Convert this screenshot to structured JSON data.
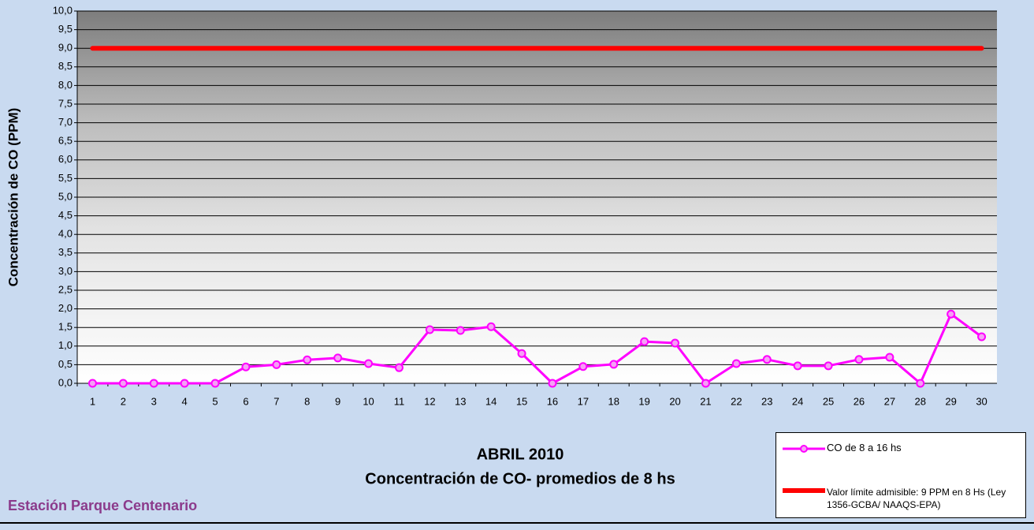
{
  "chart_data": {
    "type": "line",
    "x_label": "ABRIL 2010",
    "subtitle": "Concentración de CO- promedios de 8 hs",
    "y_label": "Concentración de CO (PPM)",
    "station": "Estación Parque Centenario",
    "categories": [
      "1",
      "2",
      "3",
      "4",
      "5",
      "6",
      "7",
      "8",
      "9",
      "10",
      "11",
      "12",
      "13",
      "14",
      "15",
      "16",
      "17",
      "18",
      "19",
      "20",
      "21",
      "22",
      "23",
      "24",
      "25",
      "26",
      "27",
      "28",
      "29",
      "30"
    ],
    "series": [
      {
        "name": "CO de 8 a 16 hs",
        "color": "#ff00ff",
        "markers": true,
        "values": [
          0,
          0,
          0,
          0,
          0,
          0.44,
          0.5,
          0.63,
          0.68,
          0.53,
          0.42,
          1.44,
          1.42,
          1.52,
          0.8,
          0,
          0.45,
          0.51,
          1.12,
          1.08,
          0,
          0.53,
          0.64,
          0.47,
          0.47,
          0.64,
          0.7,
          0,
          1.86,
          1.25
        ]
      },
      {
        "name": "Valor límite admisible: 9 PPM en 8 Hs (Ley 1356-GCBA/ NAAQS-EPA)",
        "color": "#ff0000",
        "markers": false,
        "values": [
          9,
          9,
          9,
          9,
          9,
          9,
          9,
          9,
          9,
          9,
          9,
          9,
          9,
          9,
          9,
          9,
          9,
          9,
          9,
          9,
          9,
          9,
          9,
          9,
          9,
          9,
          9,
          9,
          9,
          9
        ]
      }
    ],
    "ylim": [
      0,
      10
    ],
    "yticks": [
      {
        "value": 0,
        "label": "0,0"
      },
      {
        "value": 0.5,
        "label": "0,5"
      },
      {
        "value": 1,
        "label": "1,0"
      },
      {
        "value": 1.5,
        "label": "1,5"
      },
      {
        "value": 2,
        "label": "2,0"
      },
      {
        "value": 2.5,
        "label": "2,5"
      },
      {
        "value": 3,
        "label": "3,0"
      },
      {
        "value": 3.5,
        "label": "3,5"
      },
      {
        "value": 4,
        "label": "4,0"
      },
      {
        "value": 4.5,
        "label": "4,5"
      },
      {
        "value": 5,
        "label": "5,0"
      },
      {
        "value": 5.5,
        "label": "5,5"
      },
      {
        "value": 6,
        "label": "6,0"
      },
      {
        "value": 6.5,
        "label": "6,5"
      },
      {
        "value": 7,
        "label": "7,0"
      },
      {
        "value": 7.5,
        "label": "7,5"
      },
      {
        "value": 8,
        "label": "8,0"
      },
      {
        "value": 8.5,
        "label": "8,5"
      },
      {
        "value": 9,
        "label": "9,0"
      },
      {
        "value": 9.5,
        "label": "9,5"
      },
      {
        "value": 10,
        "label": "10,0"
      }
    ],
    "grid": true
  }
}
